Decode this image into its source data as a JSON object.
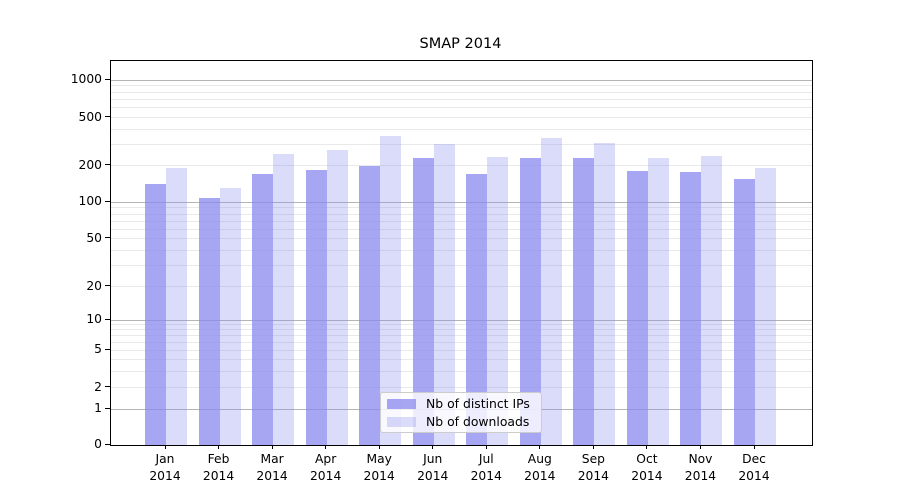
{
  "title": "SMAP 2014",
  "legend": {
    "items": [
      {
        "label": "Nb of distinct IPs",
        "series": "distinct_ips"
      },
      {
        "label": "Nb of downloads",
        "series": "downloads"
      }
    ]
  },
  "y_axis": {
    "tick_labels": [
      "0",
      "1",
      "2",
      "5",
      "10",
      "20",
      "50",
      "100",
      "200",
      "500",
      "1000"
    ]
  },
  "x_axis": {
    "tick_labels": [
      "Jan 2014",
      "Feb 2014",
      "Mar 2014",
      "Apr 2014",
      "May 2014",
      "Jun 2014",
      "Jul 2014",
      "Aug 2014",
      "Sep 2014",
      "Oct 2014",
      "Nov 2014",
      "Dec 2014"
    ]
  },
  "colors": {
    "bar_base_rgb": "136,136,238",
    "ip_alpha": 0.75,
    "dl_alpha": 0.3,
    "grid_major": "#b5b5b5",
    "grid_minor": "#e9e9e9",
    "spine": "#000000",
    "legend_border": "#cccccc",
    "text": "#000000"
  },
  "chart_data": {
    "type": "bar",
    "title": "SMAP 2014",
    "categories": [
      "Jan 2014",
      "Feb 2014",
      "Mar 2014",
      "Apr 2014",
      "May 2014",
      "Jun 2014",
      "Jul 2014",
      "Aug 2014",
      "Sep 2014",
      "Oct 2014",
      "Nov 2014",
      "Dec 2014"
    ],
    "series": [
      {
        "name": "Nb of distinct IPs",
        "values": [
          140,
          108,
          170,
          185,
          200,
          230,
          170,
          230,
          230,
          180,
          178,
          155
        ]
      },
      {
        "name": "Nb of downloads",
        "values": [
          190,
          130,
          250,
          270,
          355,
          300,
          235,
          340,
          310,
          230,
          240,
          192
        ]
      }
    ],
    "xlabel": "",
    "ylabel": "",
    "yscale": "symlog",
    "y_ticks": [
      0,
      1,
      2,
      5,
      10,
      20,
      50,
      100,
      200,
      500,
      1000
    ],
    "ylim": [
      0,
      1300
    ],
    "grid": true,
    "legend_position": "lower center"
  }
}
